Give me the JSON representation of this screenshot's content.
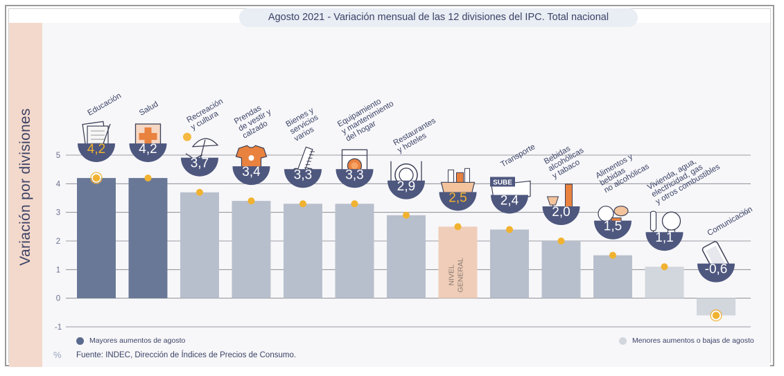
{
  "chart_data": {
    "type": "bar",
    "title": "Agosto 2021 - Variación mensual de las 12 divisiones del IPC. Total nacional",
    "ylabel": "Variación por divisiones",
    "unit": "%",
    "ylim": [
      -1,
      5
    ],
    "yticks": [
      "-1",
      "0",
      "1",
      "2",
      "3",
      "4",
      "5"
    ],
    "grid": true,
    "categories": [
      "Educación",
      "Salud",
      "Recreación y cultura",
      "Prendas de vestir y calzado",
      "Bienes y servicios varios",
      "Equipamiento y mantenimiento del hogar",
      "Restaurantes y hoteles",
      "Nivel general",
      "Transporte",
      "Bebidas alcohólicas y tabaco",
      "Alimentos y bebidas no alcohólicas",
      "Vivienda, agua, electricidad, gas y otros combustibles",
      "Comunicación"
    ],
    "category_label_lines": [
      [
        "Educación"
      ],
      [
        "Salud"
      ],
      [
        "Recreación",
        "y cultura"
      ],
      [
        "Prendas",
        "de vestir y",
        "calzado"
      ],
      [
        "Bienes y",
        "servicios",
        "varios"
      ],
      [
        "Equipamiento",
        "y mantenimiento",
        "del hogar"
      ],
      [
        "Restaurantes",
        "y hoteles"
      ],
      [],
      [
        "Transporte"
      ],
      [
        "Bebidas",
        "alcohólicas",
        "y tabaco"
      ],
      [
        "Alimentos y",
        "bebidas",
        "no alcohólicas"
      ],
      [
        "Vivienda, agua,",
        "electricidad, gas",
        "y otros combustibles"
      ],
      [
        "Comunicación"
      ]
    ],
    "values": [
      4.2,
      4.2,
      3.7,
      3.4,
      3.3,
      3.3,
      2.9,
      2.5,
      2.4,
      2.0,
      1.5,
      1.1,
      -0.6
    ],
    "value_labels": [
      "4,2",
      "4,2",
      "3,7",
      "3,4",
      "3,3",
      "3,3",
      "2,9",
      "2,5",
      "2,4",
      "2,0",
      "1,5",
      "1,1",
      "-0,6"
    ],
    "groups": [
      "top",
      "top",
      "mid",
      "mid",
      "mid",
      "mid",
      "mid",
      "general",
      "mid",
      "mid",
      "mid",
      "low",
      "low"
    ],
    "general_bar_label": [
      "NIVEL",
      "GENERAL"
    ],
    "icons": [
      "notebook-icon",
      "first-aid-icon",
      "beach-umbrella-icon",
      "t-shirt-icon",
      "comb-scissors-icon",
      "washing-machine-icon",
      "fork-knife-plate-icon",
      "shopping-bag-icon",
      "bus-ticket-icon",
      "wine-glass-icon",
      "grocery-icon",
      "light-bulb-icon",
      "smartphone-icon"
    ],
    "bus_card_text": "SUBE",
    "colors": {
      "top": "#6a7898",
      "mid": "#b8bfcc",
      "low": "#d2d6dd",
      "general": "#efcdb8",
      "badge": "#4e577e",
      "marker": "#f0b230",
      "accent_bar": "#f3d9cc",
      "grid": "#7d7f88",
      "value_highlight": "#f0b230"
    },
    "legend": [
      {
        "label": "Mayores aumentos de agosto",
        "color": "#5b6a8e"
      },
      {
        "label": "Menores aumentos o bajas de agosto",
        "color": "#d2d6dd"
      }
    ],
    "source": "Fuente: INDEC, Dirección de Índices de Precios de Consumo."
  }
}
